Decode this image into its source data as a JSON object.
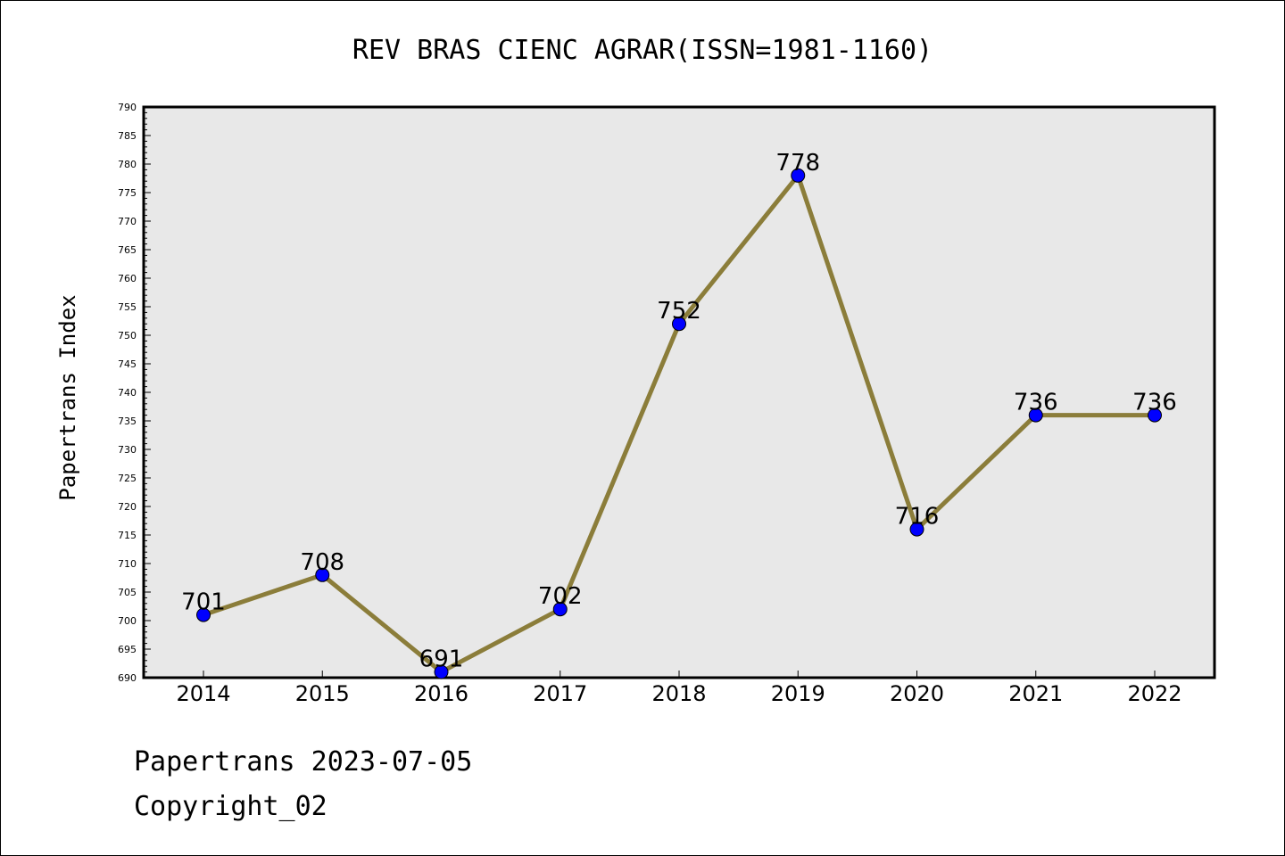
{
  "chart_data": {
    "type": "line",
    "title": "REV BRAS CIENC AGRAR(ISSN=1981-1160)",
    "ylabel": "Papertrans Index",
    "xlabel": "",
    "categories": [
      "2014",
      "2015",
      "2016",
      "2017",
      "2018",
      "2019",
      "2020",
      "2021",
      "2022"
    ],
    "series": [
      {
        "values": [
          701,
          708,
          691,
          702,
          752,
          778,
          716,
          736,
          736
        ]
      }
    ],
    "ylim": [
      690,
      790
    ],
    "ytick_step": 5,
    "grid": false,
    "line_color": "#8B7D3A",
    "marker_color": "#0000FF",
    "plot_background": "#E8E8E8"
  },
  "footer": {
    "line1": "Papertrans 2023-07-05",
    "line2": "Copyright_02"
  }
}
